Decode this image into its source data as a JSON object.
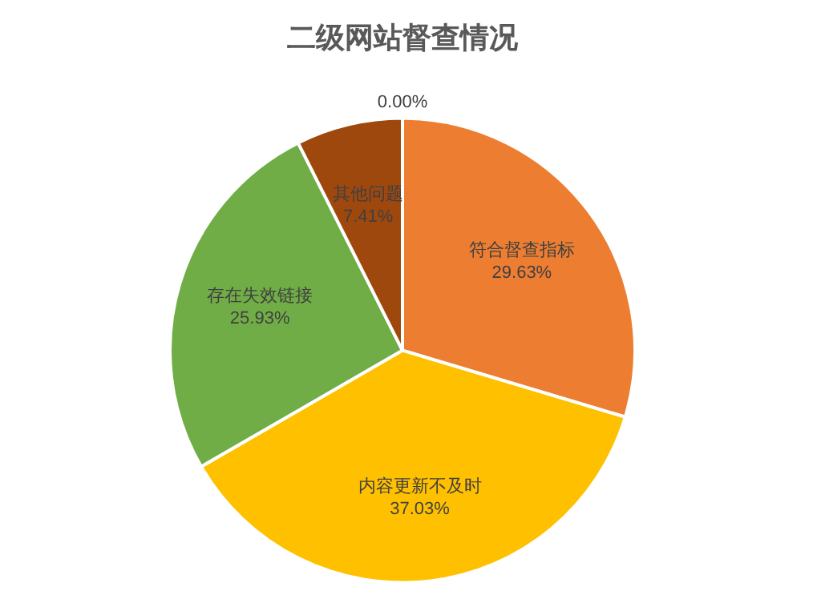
{
  "chart_data": {
    "type": "pie",
    "title": "二级网站督查情况",
    "categories": [
      null,
      "符合督查指标",
      "内容更新不及时",
      "存在失效链接",
      "其他问题"
    ],
    "values": [
      0,
      29.63,
      37.03,
      25.93,
      7.41
    ],
    "value_labels": [
      "0.00%",
      "29.63%",
      "37.03%",
      "25.93%",
      "7.41%"
    ],
    "colors": [
      "#4472c4",
      "#ed7d31",
      "#ffc000",
      "#70ad47",
      "#9e480e"
    ],
    "legend": false
  }
}
